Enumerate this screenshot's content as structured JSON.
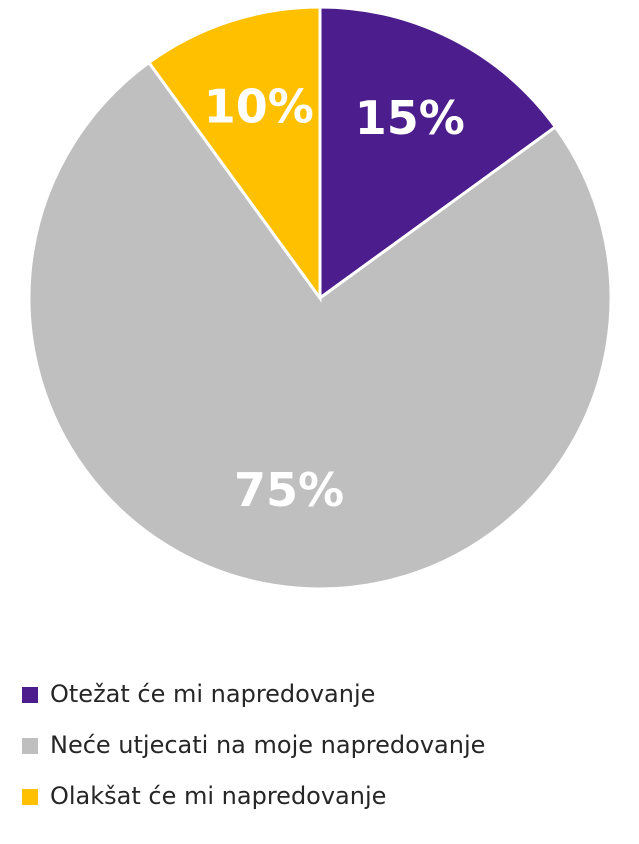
{
  "chart_data": {
    "type": "pie",
    "categories": [
      "Otežat će mi napredovanje",
      "Neće utjecati na moje napredovanje",
      "Olakšat će mi napredovanje"
    ],
    "values": [
      15,
      75,
      10
    ],
    "value_labels": [
      "15%",
      "75%",
      "10%"
    ],
    "colors": [
      "#4c1d8c",
      "#bfbfbf",
      "#ffc000"
    ]
  }
}
